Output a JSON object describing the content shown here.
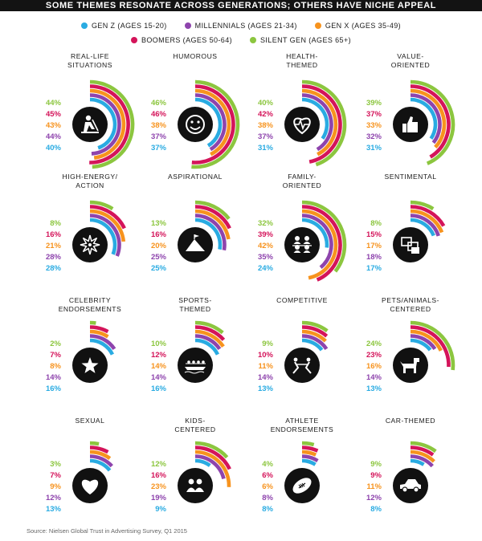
{
  "title": "SOME THEMES RESONATE ACROSS GENERATIONS; OTHERS HAVE NICHE APPEAL",
  "legend": [
    {
      "label": "GEN Z (AGES 15-20)",
      "color": "#29abe2"
    },
    {
      "label": "MILLENNIALS (AGES 21-34)",
      "color": "#8e44ad"
    },
    {
      "label": "GEN X (AGES 35-49)",
      "color": "#f7931e"
    },
    {
      "label": "BOOMERS (AGES 50-64)",
      "color": "#d4145a"
    },
    {
      "label": "SILENT GEN (AGES 65+)",
      "color": "#8cc63f"
    }
  ],
  "source": "Source: Nielsen Global Trust in Advertising Survey, Q1 2015",
  "chart_data": {
    "type": "radial-bar",
    "series": [
      {
        "name": "Gen Z (Ages 15-20)",
        "color": "#29abe2"
      },
      {
        "name": "Millennials (Ages 21-34)",
        "color": "#8e44ad"
      },
      {
        "name": "Gen X (Ages 35-49)",
        "color": "#f7931e"
      },
      {
        "name": "Boomers (Ages 50-64)",
        "color": "#d4145a"
      },
      {
        "name": "Silent Gen (Ages 65+)",
        "color": "#8cc63f"
      }
    ],
    "themes": [
      {
        "name": [
          "REAL-LIFE",
          "SITUATIONS"
        ],
        "icon": "construction-worker-icon",
        "values": [
          40,
          44,
          43,
          45,
          44
        ]
      },
      {
        "name": [
          "HUMOROUS"
        ],
        "icon": "smiley-face-icon",
        "values": [
          37,
          37,
          38,
          46,
          46
        ]
      },
      {
        "name": [
          "HEALTH-",
          "THEMED"
        ],
        "icon": "heartbeat-icon",
        "values": [
          31,
          37,
          38,
          42,
          40
        ]
      },
      {
        "name": [
          "VALUE-",
          "ORIENTED"
        ],
        "icon": "thumbs-up-icon",
        "values": [
          31,
          32,
          33,
          37,
          39
        ]
      },
      {
        "name": [
          "HIGH-ENERGY/",
          "ACTION"
        ],
        "icon": "explosion-icon",
        "values": [
          28,
          28,
          21,
          16,
          8
        ]
      },
      {
        "name": [
          "ASPIRATIONAL"
        ],
        "icon": "mountain-icon",
        "values": [
          25,
          25,
          20,
          16,
          13
        ]
      },
      {
        "name": [
          "FAMILY-",
          "ORIENTED"
        ],
        "icon": "family-icon",
        "values": [
          24,
          35,
          42,
          39,
          32
        ]
      },
      {
        "name": [
          "SENTIMENTAL"
        ],
        "icon": "photos-icon",
        "values": [
          17,
          18,
          17,
          15,
          8
        ]
      },
      {
        "name": [
          "CELEBRITY",
          "ENDORSEMENTS"
        ],
        "icon": "star-icon",
        "values": [
          16,
          14,
          8,
          7,
          2
        ]
      },
      {
        "name": [
          "SPORTS-",
          "THEMED"
        ],
        "icon": "rowing-icon",
        "values": [
          16,
          14,
          14,
          12,
          10
        ]
      },
      {
        "name": [
          "COMPETITIVE"
        ],
        "icon": "tug-of-war-icon",
        "values": [
          13,
          14,
          11,
          10,
          9
        ]
      },
      {
        "name": [
          "PETS/ANIMALS-",
          "CENTERED"
        ],
        "icon": "dog-icon",
        "values": [
          13,
          14,
          16,
          23,
          24
        ]
      },
      {
        "name": [
          "SEXUAL"
        ],
        "icon": "heart-icon",
        "values": [
          13,
          12,
          9,
          7,
          3
        ]
      },
      {
        "name": [
          "KIDS-",
          "CENTERED"
        ],
        "icon": "kids-icon",
        "values": [
          9,
          19,
          23,
          16,
          12
        ]
      },
      {
        "name": [
          "ATHLETE",
          "ENDORSEMENTS"
        ],
        "icon": "football-icon",
        "values": [
          8,
          8,
          6,
          6,
          4
        ]
      },
      {
        "name": [
          "CAR-THEMED"
        ],
        "icon": "car-icon",
        "values": [
          8,
          12,
          11,
          9,
          9
        ]
      }
    ]
  }
}
